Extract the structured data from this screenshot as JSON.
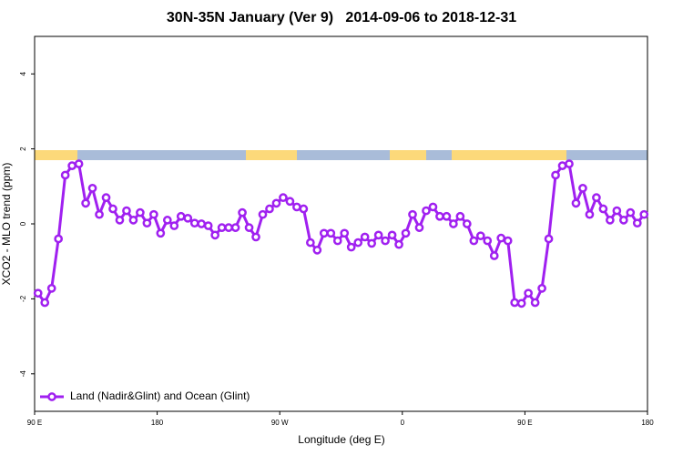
{
  "chart_data": {
    "type": "line",
    "title": "30N-35N January (Ver 9)   2014-09-06 to 2018-12-31",
    "xlabel": "Longitude (deg E)",
    "ylabel": "XCO2 - MLO trend (ppm)",
    "x": [
      92.5,
      97.5,
      102.5,
      107.5,
      112.5,
      117.5,
      122.5,
      127.5,
      132.5,
      137.5,
      142.5,
      147.5,
      152.5,
      157.5,
      162.5,
      167.5,
      172.5,
      177.5,
      182.5,
      187.5,
      192.5,
      197.5,
      202.5,
      207.5,
      212.5,
      217.5,
      222.5,
      227.5,
      232.5,
      237.5,
      242.5,
      247.5,
      252.5,
      257.5,
      262.5,
      267.5,
      272.5,
      277.5,
      282.5,
      287.5,
      292.5,
      297.5,
      302.5,
      307.5,
      312.5,
      317.5,
      322.5,
      327.5,
      332.5,
      337.5,
      342.5,
      347.5,
      352.5,
      357.5,
      362.5,
      367.5,
      372.5,
      377.5,
      382.5,
      387.5,
      392.5,
      397.5,
      402.5,
      407.5,
      412.5,
      417.5,
      422.5,
      427.5,
      432.5,
      437.5,
      442.5,
      447.5,
      452.5,
      457.5,
      462.5,
      467.5,
      472.5,
      477.5,
      482.5,
      487.5,
      492.5,
      497.5,
      502.5,
      507.5,
      512.5,
      517.5,
      522.5,
      527.5,
      532.5,
      537.5
    ],
    "series": [
      {
        "name": "Land (Nadir&Glint) and Ocean (Glint)",
        "color": "#a020f0",
        "values": [
          -1.85,
          -2.1,
          -1.72,
          -0.4,
          1.3,
          1.55,
          1.6,
          0.55,
          0.95,
          0.25,
          0.7,
          0.4,
          0.1,
          0.35,
          0.1,
          0.3,
          0.02,
          0.25,
          -0.25,
          0.1,
          -0.05,
          0.2,
          0.15,
          0.02,
          0.0,
          -0.05,
          -0.3,
          -0.1,
          -0.1,
          -0.1,
          0.3,
          -0.1,
          -0.35,
          0.25,
          0.4,
          0.55,
          0.7,
          0.6,
          0.45,
          0.4,
          -0.5,
          -0.7,
          -0.25,
          -0.25,
          -0.45,
          -0.25,
          -0.62,
          -0.5,
          -0.35,
          -0.52,
          -0.3,
          -0.45,
          -0.3,
          -0.55,
          -0.25,
          0.25,
          -0.1,
          0.35,
          0.45,
          0.2,
          0.2,
          0.0,
          0.2,
          0.0,
          -0.45,
          -0.32,
          -0.45,
          -0.85,
          -0.38,
          -0.45,
          -2.1,
          -2.12,
          -1.85,
          -2.1,
          -1.72,
          -0.4,
          1.3,
          1.55,
          1.6,
          0.55,
          0.95,
          0.25,
          0.7,
          0.4,
          0.1,
          0.35,
          0.1,
          0.3,
          0.02,
          0.25
        ]
      }
    ],
    "xlim": [
      90,
      540
    ],
    "xticks": [
      {
        "value": 90,
        "label": "90 E"
      },
      180,
      {
        "value": 270,
        "label": "90 W"
      },
      {
        "value": 360,
        "label": "0"
      },
      {
        "value": 450,
        "label": "90 E"
      },
      {
        "value": 540,
        "label": "180"
      }
    ],
    "ylim": [
      -5,
      5
    ],
    "yticks": [
      -4,
      -2,
      0,
      2,
      4
    ],
    "grid": false,
    "legend": "bottom left"
  }
}
